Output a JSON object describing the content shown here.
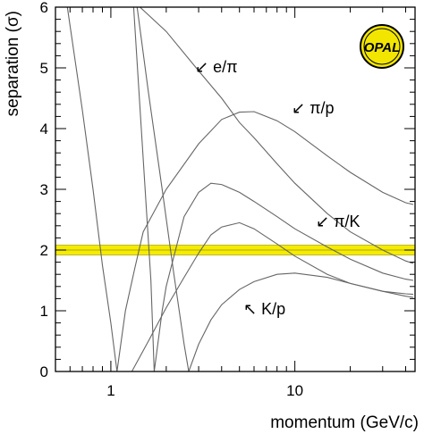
{
  "chart_data": {
    "type": "line",
    "xlabel": "momentum (GeV/c)",
    "ylabel": "separation (σ)",
    "xscale": "log",
    "xlim": [
      0.5,
      45
    ],
    "ylim": [
      0,
      6
    ],
    "x_ticks": [
      {
        "value": 1,
        "label": "1"
      },
      {
        "value": 10,
        "label": "10"
      }
    ],
    "y_ticks": [
      {
        "value": 0,
        "label": "0"
      },
      {
        "value": 1,
        "label": "1"
      },
      {
        "value": 2,
        "label": "2"
      },
      {
        "value": 3,
        "label": "3"
      },
      {
        "value": 4,
        "label": "4"
      },
      {
        "value": 5,
        "label": "5"
      },
      {
        "value": 6,
        "label": "6"
      }
    ],
    "grid": false,
    "reference_band": {
      "y": 2.0,
      "halfwidth": 0.08,
      "color": "#f5ec00",
      "line_color": "#b0a800"
    },
    "curve_color": "#666666",
    "series": [
      {
        "name": "e/π",
        "label_arrow": "↙",
        "points": [
          [
            1.44,
            6.0
          ],
          [
            2.0,
            5.6
          ],
          [
            3.0,
            4.95
          ],
          [
            4.0,
            4.5
          ],
          [
            5.0,
            4.1
          ],
          [
            6.0,
            3.85
          ],
          [
            8.0,
            3.42
          ],
          [
            10.0,
            3.1
          ],
          [
            15.0,
            2.6
          ],
          [
            20.0,
            2.3
          ],
          [
            30.0,
            2.0
          ],
          [
            40.0,
            1.82
          ],
          [
            44.0,
            1.78
          ]
        ]
      },
      {
        "name": "π/p",
        "label_arrow": "↙",
        "points": [
          [
            0.58,
            6.0
          ],
          [
            0.7,
            4.3
          ],
          [
            0.8,
            3.0
          ],
          [
            0.9,
            1.75
          ],
          [
            1.0,
            0.8
          ],
          [
            1.08,
            0.0
          ],
          [
            1.2,
            1.0
          ],
          [
            1.35,
            1.7
          ],
          [
            1.5,
            2.3
          ],
          [
            2.0,
            3.0
          ],
          [
            3.0,
            3.75
          ],
          [
            4.0,
            4.15
          ],
          [
            5.0,
            4.27
          ],
          [
            6.0,
            4.28
          ],
          [
            8.0,
            4.13
          ],
          [
            10.0,
            3.95
          ],
          [
            15.0,
            3.55
          ],
          [
            20.0,
            3.28
          ],
          [
            30.0,
            2.95
          ],
          [
            40.0,
            2.78
          ],
          [
            44.0,
            2.75
          ]
        ]
      },
      {
        "name": "π/K",
        "label_arrow": "↙",
        "points": [
          [
            1.33,
            6.0
          ],
          [
            1.45,
            4.2
          ],
          [
            1.55,
            2.8
          ],
          [
            1.65,
            1.5
          ],
          [
            1.72,
            0.0
          ],
          [
            1.9,
            1.0
          ],
          [
            2.0,
            1.4
          ],
          [
            2.5,
            2.55
          ],
          [
            3.0,
            2.95
          ],
          [
            3.5,
            3.1
          ],
          [
            4.0,
            3.08
          ],
          [
            5.0,
            2.95
          ],
          [
            6.0,
            2.8
          ],
          [
            8.0,
            2.55
          ],
          [
            10.0,
            2.35
          ],
          [
            15.0,
            2.05
          ],
          [
            20.0,
            1.85
          ],
          [
            30.0,
            1.62
          ],
          [
            40.0,
            1.52
          ],
          [
            44.0,
            1.5
          ]
        ]
      },
      {
        "name": "K/p",
        "label_arrow": "↖",
        "points": [
          [
            1.39,
            6.0
          ],
          [
            1.6,
            4.6
          ],
          [
            1.9,
            3.0
          ],
          [
            2.2,
            1.6
          ],
          [
            2.5,
            0.45
          ],
          [
            2.65,
            0.0
          ],
          [
            3.0,
            0.45
          ],
          [
            3.5,
            0.85
          ],
          [
            4.0,
            1.1
          ],
          [
            5.0,
            1.35
          ],
          [
            6.0,
            1.48
          ],
          [
            8.0,
            1.6
          ],
          [
            10.0,
            1.62
          ],
          [
            15.0,
            1.55
          ],
          [
            20.0,
            1.45
          ],
          [
            30.0,
            1.32
          ],
          [
            40.0,
            1.24
          ],
          [
            44.0,
            1.22
          ]
        ]
      },
      {
        "name": "",
        "label_arrow": "",
        "points": [
          [
            1.3,
            0.0
          ],
          [
            1.6,
            0.5
          ],
          [
            2.0,
            1.05
          ],
          [
            2.5,
            1.55
          ],
          [
            3.0,
            1.95
          ],
          [
            3.5,
            2.25
          ],
          [
            4.0,
            2.38
          ],
          [
            5.0,
            2.45
          ],
          [
            6.0,
            2.35
          ],
          [
            8.0,
            2.1
          ],
          [
            10.0,
            1.9
          ],
          [
            15.0,
            1.6
          ],
          [
            20.0,
            1.45
          ],
          [
            30.0,
            1.32
          ],
          [
            40.0,
            1.28
          ],
          [
            44.0,
            1.27
          ]
        ]
      }
    ],
    "logo_text": "OPAL"
  }
}
